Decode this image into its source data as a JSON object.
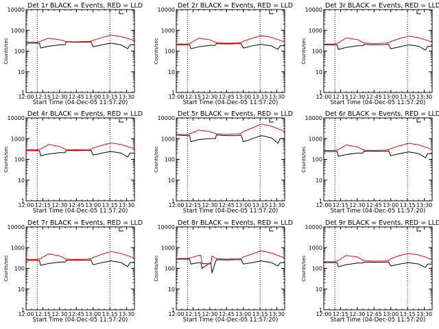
{
  "figure": {
    "xlabel": "Start Time (04-Dec-05 11:57:20)",
    "ylabel": "Counts/sec",
    "x_ticks": [
      "12:00",
      "12:15",
      "12:30",
      "12:45",
      "13:00",
      "13:15",
      "13:30"
    ],
    "y_ticks": [
      "1",
      "10",
      "100",
      "1000",
      "10000"
    ],
    "colors": {
      "events": "#000000",
      "lld": "#ff0000",
      "axes": "#000000",
      "background": "#ffffff"
    }
  },
  "chart_data": [
    {
      "type": "line",
      "title": "Det 1r BLACK = Events, RED = LLD",
      "xlabel": "Start Time (04-Dec-05 11:57:20)",
      "ylabel": "Counts/sec",
      "xlim": [
        "12:00",
        "13:37"
      ],
      "ylim": [
        1,
        10000
      ],
      "yscale": "log",
      "vlines": [
        "12:10",
        "13:15"
      ],
      "series": [
        {
          "name": "Events",
          "color": "#000000",
          "x": [
            "12:00",
            "12:10",
            "12:12",
            "12:13",
            "12:20",
            "12:30",
            "12:35",
            "12:36",
            "12:45",
            "12:55",
            "12:58",
            "13:00",
            "13:08",
            "13:16",
            "13:25",
            "13:31",
            "13:33",
            "13:37"
          ],
          "y": [
            240,
            240,
            240,
            140,
            170,
            200,
            200,
            280,
            270,
            270,
            280,
            160,
            200,
            240,
            200,
            130,
            200,
            200
          ]
        },
        {
          "name": "LLD",
          "color": "#ff0000",
          "x": [
            "12:00",
            "12:10",
            "12:13",
            "12:20",
            "12:30",
            "12:36",
            "12:45",
            "12:55",
            "12:58",
            "13:00",
            "13:08",
            "13:16",
            "13:25",
            "13:33",
            "13:37"
          ],
          "y": [
            270,
            270,
            300,
            420,
            350,
            290,
            280,
            290,
            300,
            330,
            450,
            600,
            500,
            380,
            320
          ]
        }
      ]
    },
    {
      "type": "line",
      "title": "Det 2r BLACK = Events, RED = LLD",
      "xlabel": "Start Time (04-Dec-05 11:57:20)",
      "ylabel": "Counts/sec",
      "xlim": [
        "12:00",
        "13:37"
      ],
      "ylim": [
        1,
        10000
      ],
      "yscale": "log",
      "vlines": [
        "12:10",
        "13:15"
      ],
      "series": [
        {
          "name": "Events",
          "color": "#000000",
          "x": [
            "12:00",
            "12:10",
            "12:12",
            "12:13",
            "12:20",
            "12:30",
            "12:35",
            "12:36",
            "12:45",
            "12:55",
            "12:58",
            "13:00",
            "13:08",
            "13:16",
            "13:25",
            "13:31",
            "13:33",
            "13:37"
          ],
          "y": [
            200,
            200,
            200,
            130,
            160,
            190,
            190,
            230,
            220,
            225,
            230,
            140,
            180,
            210,
            180,
            120,
            180,
            180
          ]
        },
        {
          "name": "LLD",
          "color": "#ff0000",
          "x": [
            "12:00",
            "12:10",
            "12:13",
            "12:20",
            "12:30",
            "12:36",
            "12:45",
            "12:55",
            "12:58",
            "13:00",
            "13:08",
            "13:16",
            "13:25",
            "13:33",
            "13:37"
          ],
          "y": [
            220,
            220,
            250,
            420,
            350,
            250,
            240,
            250,
            260,
            300,
            420,
            560,
            460,
            330,
            280
          ]
        }
      ]
    },
    {
      "type": "line",
      "title": "Det 3r BLACK = Events, RED = LLD",
      "xlabel": "Start Time (04-Dec-05 11:57:20)",
      "ylabel": "Counts/sec",
      "xlim": [
        "12:00",
        "13:37"
      ],
      "ylim": [
        1,
        10000
      ],
      "yscale": "log",
      "vlines": [
        "12:10",
        "13:15"
      ],
      "series": [
        {
          "name": "Events",
          "color": "#000000",
          "x": [
            "12:00",
            "12:10",
            "12:12",
            "12:13",
            "12:20",
            "12:30",
            "12:35",
            "12:36",
            "12:45",
            "12:55",
            "12:58",
            "13:00",
            "13:08",
            "13:16",
            "13:25",
            "13:31",
            "13:33",
            "13:37"
          ],
          "y": [
            200,
            200,
            200,
            120,
            150,
            180,
            180,
            210,
            200,
            205,
            210,
            130,
            160,
            200,
            170,
            110,
            170,
            170
          ]
        },
        {
          "name": "LLD",
          "color": "#ff0000",
          "x": [
            "12:00",
            "12:10",
            "12:13",
            "12:20",
            "12:30",
            "12:36",
            "12:45",
            "12:55",
            "12:58",
            "13:00",
            "13:08",
            "13:16",
            "13:25",
            "13:33",
            "13:37"
          ],
          "y": [
            220,
            220,
            250,
            430,
            360,
            250,
            230,
            240,
            250,
            290,
            410,
            520,
            440,
            320,
            270
          ]
        }
      ]
    },
    {
      "type": "line",
      "title": "Det 4r BLACK = Events, RED = LLD",
      "xlabel": "Start Time (04-Dec-05 11:57:20)",
      "ylabel": "Counts/sec",
      "xlim": [
        "12:00",
        "13:37"
      ],
      "ylim": [
        1,
        10000
      ],
      "yscale": "log",
      "vlines": [
        "12:10",
        "13:15"
      ],
      "series": [
        {
          "name": "Events",
          "color": "#000000",
          "x": [
            "12:00",
            "12:10",
            "12:12",
            "12:13",
            "12:20",
            "12:30",
            "12:35",
            "12:36",
            "12:45",
            "12:55",
            "12:58",
            "13:00",
            "13:08",
            "13:16",
            "13:25",
            "13:31",
            "13:33",
            "13:37"
          ],
          "y": [
            260,
            260,
            260,
            150,
            180,
            210,
            210,
            270,
            265,
            270,
            275,
            160,
            200,
            240,
            200,
            130,
            200,
            200
          ]
        },
        {
          "name": "LLD",
          "color": "#ff0000",
          "x": [
            "12:00",
            "12:10",
            "12:13",
            "12:20",
            "12:30",
            "12:36",
            "12:45",
            "12:55",
            "12:58",
            "13:00",
            "13:08",
            "13:16",
            "13:25",
            "13:33",
            "13:37"
          ],
          "y": [
            290,
            290,
            320,
            520,
            420,
            300,
            290,
            300,
            310,
            350,
            480,
            620,
            520,
            380,
            330
          ]
        }
      ]
    },
    {
      "type": "line",
      "title": "Det 5r BLACK = Events, RED = LLD",
      "xlabel": "Start Time (04-Dec-05 11:57:20)",
      "ylabel": "Counts/sec",
      "xlim": [
        "12:00",
        "13:37"
      ],
      "ylim": [
        1,
        10000
      ],
      "yscale": "log",
      "vlines": [
        "12:10",
        "13:15"
      ],
      "series": [
        {
          "name": "Events",
          "color": "#000000",
          "x": [
            "12:00",
            "12:10",
            "12:12",
            "12:13",
            "12:20",
            "12:30",
            "12:35",
            "12:36",
            "12:45",
            "12:55",
            "12:58",
            "13:00",
            "13:08",
            "13:16",
            "13:25",
            "13:31",
            "13:33",
            "13:37"
          ],
          "y": [
            1500,
            1400,
            1400,
            700,
            900,
            1000,
            1000,
            1500,
            1400,
            1400,
            1500,
            700,
            1000,
            1400,
            1100,
            600,
            1000,
            1000
          ]
        },
        {
          "name": "LLD",
          "color": "#ff0000",
          "x": [
            "12:00",
            "12:10",
            "12:13",
            "12:20",
            "12:30",
            "12:36",
            "12:45",
            "12:55",
            "12:58",
            "13:00",
            "13:08",
            "13:16",
            "13:25",
            "13:33",
            "13:37"
          ],
          "y": [
            1600,
            1600,
            1800,
            2600,
            2200,
            1700,
            1600,
            1700,
            1800,
            2200,
            3300,
            5000,
            4000,
            2700,
            2200
          ]
        }
      ]
    },
    {
      "type": "line",
      "title": "Det 6r BLACK = Events, RED = LLD",
      "xlabel": "Start Time (04-Dec-05 11:57:20)",
      "ylabel": "Counts/sec",
      "xlim": [
        "12:00",
        "13:37"
      ],
      "ylim": [
        1,
        10000
      ],
      "yscale": "log",
      "vlines": [
        "12:10",
        "13:15"
      ],
      "series": [
        {
          "name": "Events",
          "color": "#000000",
          "x": [
            "12:00",
            "12:10",
            "12:12",
            "12:13",
            "12:20",
            "12:30",
            "12:35",
            "12:36",
            "12:45",
            "12:55",
            "12:58",
            "13:00",
            "13:08",
            "13:16",
            "13:25",
            "13:31",
            "13:33",
            "13:37"
          ],
          "y": [
            240,
            240,
            240,
            140,
            170,
            200,
            200,
            250,
            245,
            250,
            255,
            150,
            190,
            230,
            190,
            120,
            190,
            190
          ]
        },
        {
          "name": "LLD",
          "color": "#ff0000",
          "x": [
            "12:00",
            "12:10",
            "12:13",
            "12:20",
            "12:30",
            "12:36",
            "12:45",
            "12:55",
            "12:58",
            "13:00",
            "13:08",
            "13:16",
            "13:25",
            "13:33",
            "13:37"
          ],
          "y": [
            270,
            270,
            300,
            500,
            400,
            280,
            270,
            280,
            290,
            330,
            460,
            600,
            500,
            360,
            300
          ]
        }
      ]
    },
    {
      "type": "line",
      "title": "Det 7r BLACK = Events, RED = LLD",
      "xlabel": "Start Time (04-Dec-05 11:57:20)",
      "ylabel": "Counts/sec",
      "xlim": [
        "12:00",
        "13:37"
      ],
      "ylim": [
        1,
        10000
      ],
      "yscale": "log",
      "vlines": [
        "12:10",
        "13:15"
      ],
      "series": [
        {
          "name": "Events",
          "color": "#000000",
          "x": [
            "12:00",
            "12:10",
            "12:12",
            "12:13",
            "12:20",
            "12:30",
            "12:35",
            "12:36",
            "12:45",
            "12:55",
            "12:58",
            "13:00",
            "13:08",
            "13:16",
            "13:25",
            "13:31",
            "13:33",
            "13:37"
          ],
          "y": [
            240,
            240,
            240,
            140,
            170,
            200,
            200,
            250,
            245,
            250,
            255,
            150,
            190,
            230,
            190,
            120,
            190,
            190
          ]
        },
        {
          "name": "LLD",
          "color": "#ff0000",
          "x": [
            "12:00",
            "12:10",
            "12:13",
            "12:20",
            "12:30",
            "12:36",
            "12:45",
            "12:55",
            "12:58",
            "13:00",
            "13:08",
            "13:16",
            "13:25",
            "13:33",
            "13:37"
          ],
          "y": [
            270,
            270,
            300,
            500,
            400,
            280,
            270,
            280,
            290,
            330,
            480,
            650,
            520,
            370,
            310
          ]
        }
      ]
    },
    {
      "type": "line",
      "title": "Det 8r BLACK = Events, RED = LLD",
      "xlabel": "Start Time (04-Dec-05 11:57:20)",
      "ylabel": "Counts/sec",
      "xlim": [
        "12:00",
        "13:37"
      ],
      "ylim": [
        1,
        10000
      ],
      "yscale": "log",
      "vlines": [
        "12:10",
        "13:15"
      ],
      "series": [
        {
          "name": "Events",
          "color": "#000000",
          "x": [
            "12:00",
            "12:10",
            "12:12",
            "12:13",
            "12:20",
            "12:22",
            "12:23",
            "12:30",
            "12:31",
            "12:32",
            "12:35",
            "12:36",
            "12:45",
            "12:55",
            "12:58",
            "13:00",
            "13:08",
            "13:16",
            "13:25",
            "13:31",
            "13:33",
            "13:37"
          ],
          "y": [
            280,
            280,
            280,
            160,
            190,
            190,
            100,
            180,
            180,
            60,
            200,
            260,
            255,
            260,
            265,
            160,
            190,
            230,
            190,
            130,
            190,
            190
          ]
        },
        {
          "name": "LLD",
          "color": "#ff0000",
          "x": [
            "12:00",
            "12:10",
            "12:13",
            "12:20",
            "12:22",
            "12:23",
            "12:30",
            "12:31",
            "12:32",
            "12:36",
            "12:45",
            "12:55",
            "12:58",
            "13:00",
            "13:08",
            "13:16",
            "13:25",
            "13:33",
            "13:37"
          ],
          "y": [
            300,
            300,
            330,
            420,
            420,
            170,
            170,
            170,
            400,
            290,
            280,
            290,
            300,
            350,
            500,
            700,
            550,
            380,
            320
          ]
        }
      ]
    },
    {
      "type": "line",
      "title": "Det 9r BLACK = Events, RED = LLD",
      "xlabel": "Start Time (04-Dec-05 11:57:20)",
      "ylabel": "Counts/sec",
      "xlim": [
        "12:00",
        "13:37"
      ],
      "ylim": [
        1,
        10000
      ],
      "yscale": "log",
      "vlines": [
        "12:10",
        "13:15"
      ],
      "series": [
        {
          "name": "Events",
          "color": "#000000",
          "x": [
            "12:00",
            "12:10",
            "12:12",
            "12:13",
            "12:20",
            "12:30",
            "12:35",
            "12:36",
            "12:45",
            "12:55",
            "12:58",
            "13:00",
            "13:08",
            "13:16",
            "13:25",
            "13:31",
            "13:33",
            "13:37"
          ],
          "y": [
            190,
            190,
            190,
            120,
            150,
            180,
            180,
            200,
            195,
            200,
            205,
            130,
            160,
            190,
            160,
            110,
            160,
            160
          ]
        },
        {
          "name": "LLD",
          "color": "#ff0000",
          "x": [
            "12:00",
            "12:10",
            "12:13",
            "12:20",
            "12:30",
            "12:36",
            "12:45",
            "12:55",
            "12:58",
            "13:00",
            "13:08",
            "13:16",
            "13:25",
            "13:33",
            "13:37"
          ],
          "y": [
            210,
            210,
            240,
            420,
            350,
            240,
            220,
            230,
            240,
            290,
            420,
            520,
            440,
            320,
            260
          ]
        }
      ]
    }
  ]
}
